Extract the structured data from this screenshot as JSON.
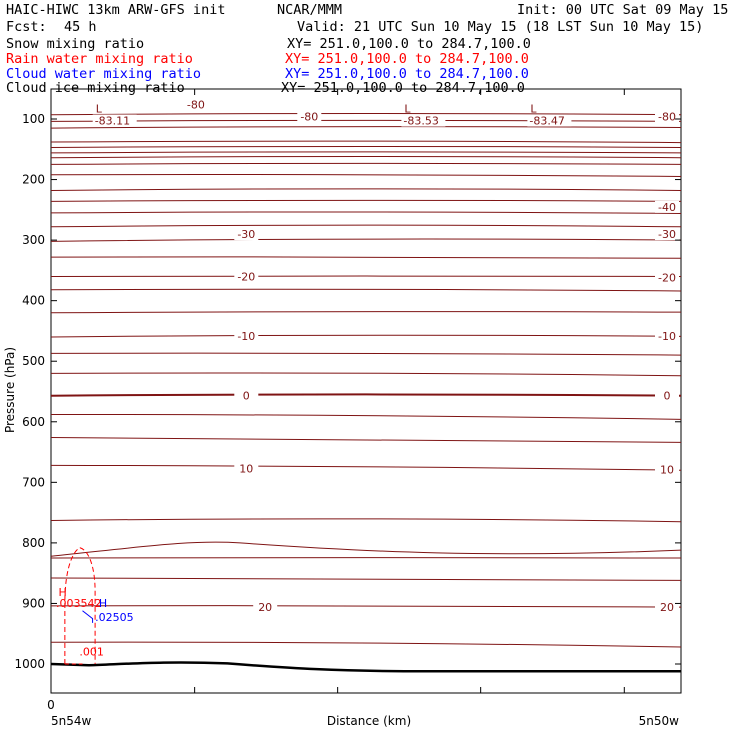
{
  "header": {
    "model": "HAIC-HIWC 13km ARW-GFS init",
    "center": "NCAR/MMM",
    "init": "Init: 00 UTC Sat 09 May 15",
    "fcst_label": "Fcst:",
    "fcst_value": "45 h",
    "valid": "Valid: 21 UTC Sun 10 May 15 (18 LST Sun 10 May 15)"
  },
  "fields": [
    {
      "name": "Snow mixing ratio",
      "xy": "XY= 251.0,100.0 to 284.7,100.0",
      "color": "#000000"
    },
    {
      "name": "Rain water mixing ratio",
      "xy": "XY= 251.0,100.0 to 284.7,100.0",
      "color": "#ff0000"
    },
    {
      "name": "Cloud water mixing ratio",
      "xy": "XY= 251.0,100.0 to 284.7,100.0",
      "color": "#0000ff"
    },
    {
      "name": "Cloud ice mixing ratio",
      "xy": "XY= 251.0,100.0 to 284.7,100.0",
      "color": "#000000"
    }
  ],
  "chart_data": {
    "type": "cross-section contour",
    "ylabel": "Pressure (hPa)",
    "xlabel": "Distance (km)",
    "x_start_label": "5n54w",
    "x_end_label": "5n50w",
    "x_zero_label": "0",
    "yticks": [
      100,
      200,
      300,
      400,
      500,
      600,
      700,
      800,
      900,
      1000
    ],
    "ylim": [
      1050,
      55
    ],
    "temperature_color": "#7f1414",
    "terrain_color": "#000000",
    "isotherm_labels": [
      {
        "text": "-80",
        "x": 0.23,
        "p": 76
      },
      {
        "text": "-80",
        "x": 0.41,
        "p": 96
      },
      {
        "text": "-80",
        "x": 1.0,
        "p": 96
      },
      {
        "text": "-40",
        "x": 1.0,
        "p": 245
      },
      {
        "text": "-30",
        "x": 0.31,
        "p": 290
      },
      {
        "text": "-30",
        "x": 1.0,
        "p": 290
      },
      {
        "text": "-20",
        "x": 0.31,
        "p": 360
      },
      {
        "text": "-20",
        "x": 1.0,
        "p": 362
      },
      {
        "text": "-10",
        "x": 0.31,
        "p": 458
      },
      {
        "text": "-10",
        "x": 1.0,
        "p": 458
      },
      {
        "text": "0",
        "x": 0.31,
        "p": 557
      },
      {
        "text": "0",
        "x": 1.0,
        "p": 557
      },
      {
        "text": "10",
        "x": 0.31,
        "p": 677
      },
      {
        "text": "10",
        "x": 1.0,
        "p": 679
      },
      {
        "text": "20",
        "x": 0.34,
        "p": 906
      },
      {
        "text": "20",
        "x": 1.0,
        "p": 906
      }
    ],
    "extrema": [
      {
        "mark": "L",
        "value": "-83.11",
        "x": 0.09,
        "p": 91
      },
      {
        "mark": "L",
        "value": "-83.53",
        "x": 0.58,
        "p": 91
      },
      {
        "mark": "L",
        "value": "-83.47",
        "x": 0.78,
        "p": 91
      }
    ],
    "rain_water": {
      "max_mark": "H",
      "max_value": ".003542",
      "contour_label": ".001",
      "color": "#ff0000"
    },
    "cloud_water": {
      "max_mark": "H",
      "max_value": ".02505",
      "color": "#0000ff"
    }
  }
}
